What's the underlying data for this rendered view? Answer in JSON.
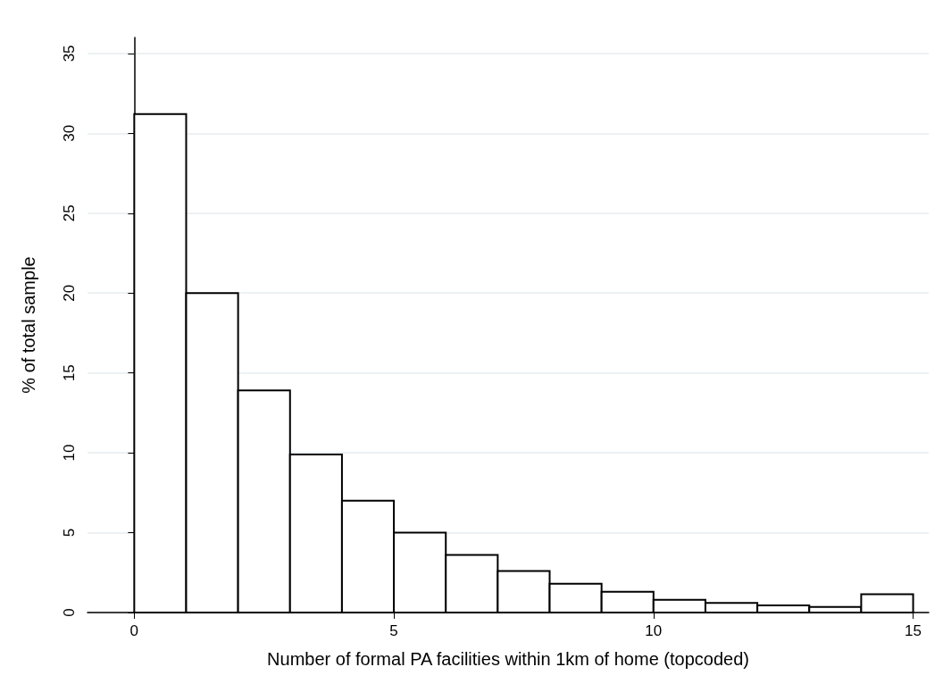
{
  "chart_data": {
    "type": "histogram",
    "xlabel": "Number of formal PA facilities within 1km of home (topcoded)",
    "ylabel": "% of total sample",
    "bins": [
      0,
      1,
      2,
      3,
      4,
      5,
      6,
      7,
      8,
      9,
      10,
      11,
      12,
      13,
      14,
      15
    ],
    "values": [
      31.2,
      20.0,
      13.9,
      9.9,
      7.0,
      5.0,
      3.6,
      2.6,
      1.8,
      1.3,
      0.8,
      0.6,
      0.45,
      0.35,
      1.15
    ],
    "color": "#ffffff",
    "xlim": [
      -0.9,
      15.3
    ],
    "xticks": [
      0,
      5,
      10,
      15
    ],
    "ylim": [
      0,
      36
    ],
    "yticks": [
      0,
      5,
      10,
      15,
      20,
      25,
      30,
      35
    ],
    "grid": "y"
  }
}
